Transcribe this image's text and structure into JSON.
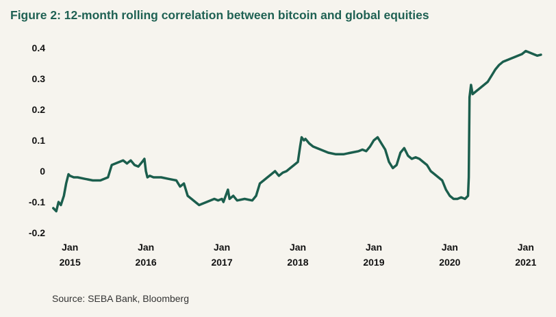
{
  "title": "Figure 2: 12-month rolling correlation between bitcoin and global equities",
  "source": "Source: SEBA Bank, Bloomberg",
  "colors": {
    "line": "#1b5e4d",
    "title": "#1f6153",
    "axis": "#111111",
    "background": "#f6f4ee"
  },
  "chart_data": {
    "type": "line",
    "title": "Figure 2: 12-month rolling correlation between bitcoin and global equities",
    "xlabel": "",
    "ylabel": "",
    "xlim": [
      2014.8,
      2021.2
    ],
    "ylim": [
      -0.2,
      0.4
    ],
    "yticks": [
      {
        "value": 0.4,
        "label": "0.4"
      },
      {
        "value": 0.3,
        "label": "0.3"
      },
      {
        "value": 0.2,
        "label": "0.2"
      },
      {
        "value": 0.1,
        "label": "0.1"
      },
      {
        "value": 0,
        "label": "0"
      },
      {
        "value": -0.1,
        "label": "-0.1"
      },
      {
        "value": -0.2,
        "label": "-0.2"
      }
    ],
    "xticks": [
      {
        "value": 2015,
        "line1": "Jan",
        "line2": "2015"
      },
      {
        "value": 2016,
        "line1": "Jan",
        "line2": "2016"
      },
      {
        "value": 2017,
        "line1": "Jan",
        "line2": "2017"
      },
      {
        "value": 2018,
        "line1": "Jan",
        "line2": "2018"
      },
      {
        "value": 2019,
        "line1": "Jan",
        "line2": "2019"
      },
      {
        "value": 2020,
        "line1": "Jan",
        "line2": "2020"
      },
      {
        "value": 2021,
        "line1": "Jan",
        "line2": "2021"
      }
    ],
    "grid": false,
    "legend": "none",
    "series": [
      {
        "x": [
          2014.78,
          2014.82,
          2014.85,
          2014.88,
          2014.92,
          2014.95,
          2014.98,
          2015.0,
          2015.05,
          2015.1,
          2015.2,
          2015.3,
          2015.4,
          2015.5,
          2015.55,
          2015.6,
          2015.65,
          2015.7,
          2015.75,
          2015.8,
          2015.85,
          2015.9,
          2015.95,
          2015.98,
          2016.0,
          2016.02,
          2016.05,
          2016.1,
          2016.2,
          2016.3,
          2016.4,
          2016.45,
          2016.5,
          2016.55,
          2016.6,
          2016.65,
          2016.7,
          2016.8,
          2016.9,
          2016.95,
          2017.0,
          2017.02,
          2017.05,
          2017.08,
          2017.1,
          2017.15,
          2017.2,
          2017.3,
          2017.4,
          2017.45,
          2017.5,
          2017.55,
          2017.6,
          2017.65,
          2017.7,
          2017.75,
          2017.8,
          2017.85,
          2017.9,
          2017.95,
          2018.0,
          2018.03,
          2018.05,
          2018.08,
          2018.1,
          2018.15,
          2018.2,
          2018.25,
          2018.3,
          2018.4,
          2018.5,
          2018.6,
          2018.7,
          2018.8,
          2018.85,
          2018.9,
          2018.95,
          2019.0,
          2019.05,
          2019.1,
          2019.15,
          2019.2,
          2019.25,
          2019.3,
          2019.35,
          2019.4,
          2019.45,
          2019.5,
          2019.55,
          2019.6,
          2019.65,
          2019.7,
          2019.75,
          2019.8,
          2019.85,
          2019.9,
          2019.95,
          2020.0,
          2020.05,
          2020.1,
          2020.15,
          2020.2,
          2020.24,
          2020.25,
          2020.26,
          2020.28,
          2020.3,
          2020.35,
          2020.4,
          2020.45,
          2020.5,
          2020.55,
          2020.6,
          2020.65,
          2020.7,
          2020.75,
          2020.8,
          2020.85,
          2020.9,
          2020.95,
          2021.0,
          2021.05,
          2021.1,
          2021.15,
          2021.2
        ],
        "values": [
          -0.12,
          -0.13,
          -0.1,
          -0.11,
          -0.08,
          -0.04,
          -0.01,
          -0.015,
          -0.02,
          -0.02,
          -0.025,
          -0.03,
          -0.03,
          -0.02,
          0.02,
          0.025,
          0.03,
          0.035,
          0.025,
          0.035,
          0.02,
          0.015,
          0.03,
          0.04,
          0.0,
          -0.02,
          -0.015,
          -0.02,
          -0.02,
          -0.025,
          -0.03,
          -0.05,
          -0.04,
          -0.08,
          -0.09,
          -0.1,
          -0.11,
          -0.1,
          -0.09,
          -0.095,
          -0.09,
          -0.1,
          -0.08,
          -0.06,
          -0.09,
          -0.08,
          -0.095,
          -0.09,
          -0.095,
          -0.08,
          -0.04,
          -0.03,
          -0.02,
          -0.01,
          0.0,
          -0.015,
          -0.005,
          0.0,
          0.01,
          0.02,
          0.03,
          0.08,
          0.11,
          0.1,
          0.105,
          0.09,
          0.08,
          0.075,
          0.07,
          0.06,
          0.055,
          0.055,
          0.06,
          0.065,
          0.07,
          0.065,
          0.08,
          0.1,
          0.11,
          0.09,
          0.07,
          0.03,
          0.01,
          0.02,
          0.06,
          0.075,
          0.05,
          0.04,
          0.045,
          0.04,
          0.03,
          0.02,
          0.0,
          -0.01,
          -0.02,
          -0.03,
          -0.06,
          -0.08,
          -0.09,
          -0.09,
          -0.085,
          -0.09,
          -0.08,
          -0.02,
          0.24,
          0.28,
          0.25,
          0.26,
          0.27,
          0.28,
          0.29,
          0.31,
          0.33,
          0.345,
          0.355,
          0.36,
          0.365,
          0.37,
          0.375,
          0.38,
          0.39,
          0.385,
          0.38,
          0.375,
          0.378
        ]
      }
    ]
  }
}
